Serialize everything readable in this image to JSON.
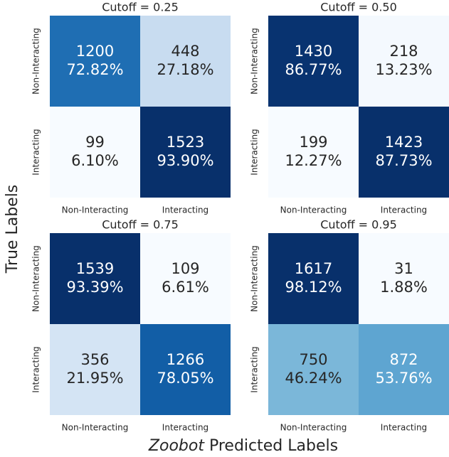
{
  "figure": {
    "ylabel": "True Labels",
    "xlabel_model": "Zoobot",
    "xlabel": "Predicted Labels"
  },
  "chart_data": [
    {
      "type": "heatmap",
      "title": "Cutoff = 0.25",
      "colormap": "Blues",
      "x_categories": [
        "Non-Interacting",
        "Interacting"
      ],
      "y_categories": [
        "Non-Interacting",
        "Interacting"
      ],
      "values": [
        [
          1200,
          448
        ],
        [
          99,
          1523
        ]
      ],
      "percents": [
        [
          72.82,
          27.18
        ],
        [
          6.1,
          93.9
        ]
      ],
      "percent_labels": [
        [
          "72.82%",
          "27.18%"
        ],
        [
          "6.10%",
          "93.90%"
        ]
      ]
    },
    {
      "type": "heatmap",
      "title": "Cutoff = 0.50",
      "colormap": "Blues",
      "x_categories": [
        "Non-Interacting",
        "Interacting"
      ],
      "y_categories": [
        "Non-Interacting",
        "Interacting"
      ],
      "values": [
        [
          1430,
          218
        ],
        [
          199,
          1423
        ]
      ],
      "percents": [
        [
          86.77,
          13.23
        ],
        [
          12.27,
          87.73
        ]
      ],
      "percent_labels": [
        [
          "86.77%",
          "13.23%"
        ],
        [
          "12.27%",
          "87.73%"
        ]
      ]
    },
    {
      "type": "heatmap",
      "title": "Cutoff = 0.75",
      "colormap": "Blues",
      "x_categories": [
        "Non-Interacting",
        "Interacting"
      ],
      "y_categories": [
        "Non-Interacting",
        "Interacting"
      ],
      "values": [
        [
          1539,
          109
        ],
        [
          356,
          1266
        ]
      ],
      "percents": [
        [
          93.39,
          6.61
        ],
        [
          21.95,
          78.05
        ]
      ],
      "percent_labels": [
        [
          "93.39%",
          "6.61%"
        ],
        [
          "21.95%",
          "78.05%"
        ]
      ]
    },
    {
      "type": "heatmap",
      "title": "Cutoff = 0.95",
      "colormap": "Blues",
      "x_categories": [
        "Non-Interacting",
        "Interacting"
      ],
      "y_categories": [
        "Non-Interacting",
        "Interacting"
      ],
      "values": [
        [
          1617,
          31
        ],
        [
          750,
          872
        ]
      ],
      "percents": [
        [
          98.12,
          1.88
        ],
        [
          46.24,
          53.76
        ]
      ],
      "percent_labels": [
        [
          "98.12%",
          "1.88%"
        ],
        [
          "46.24%",
          "53.76%"
        ]
      ]
    }
  ]
}
